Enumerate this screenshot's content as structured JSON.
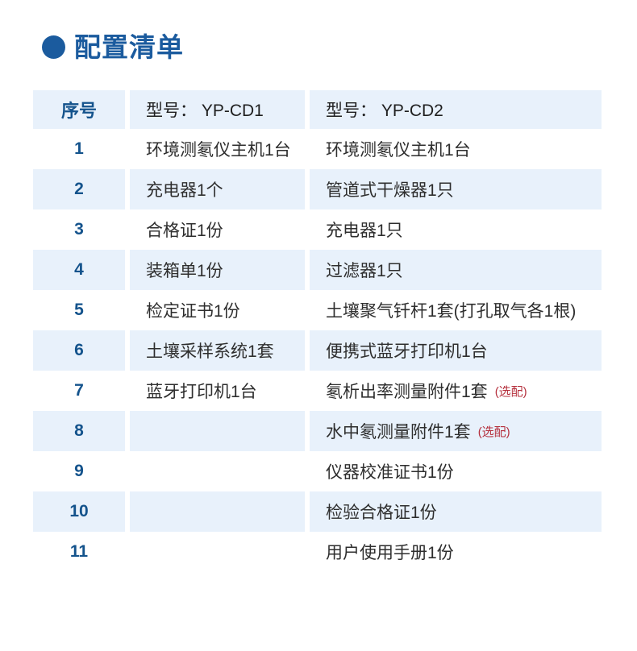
{
  "title": {
    "text": "配置清单"
  },
  "icons": {
    "bullet": "filled-circle"
  },
  "colors": {
    "accent_blue": "#1b5b9e",
    "number_blue": "#14538c",
    "row_light_blue": "#e8f1fb",
    "body_text": "#2e2e2e",
    "optional_red": "#b5303d"
  },
  "table": {
    "headers": [
      "序号",
      "型号： YP-CD1",
      "型号： YP-CD2"
    ],
    "rows": [
      {
        "no": "1",
        "cd1": "环境测氡仪主机1台",
        "cd2": "环境测氡仪主机1台",
        "note": ""
      },
      {
        "no": "2",
        "cd1": "充电器1个",
        "cd2": "管道式干燥器1只",
        "note": ""
      },
      {
        "no": "3",
        "cd1": "合格证1份",
        "cd2": "充电器1只",
        "note": ""
      },
      {
        "no": "4",
        "cd1": "装箱单1份",
        "cd2": "过滤器1只",
        "note": ""
      },
      {
        "no": "5",
        "cd1": "检定证书1份",
        "cd2": "土壤聚气钎杆1套(打孔取气各1根)",
        "note": ""
      },
      {
        "no": "6",
        "cd1": "土壤采样系统1套",
        "cd2": "便携式蓝牙打印机1台",
        "note": ""
      },
      {
        "no": "7",
        "cd1": "蓝牙打印机1台",
        "cd2": "氡析出率测量附件1套",
        "note": "(选配)"
      },
      {
        "no": "8",
        "cd1": "",
        "cd2": "水中氡测量附件1套",
        "note": "(选配)"
      },
      {
        "no": "9",
        "cd1": "",
        "cd2": "仪器校准证书1份",
        "note": ""
      },
      {
        "no": "10",
        "cd1": "",
        "cd2": "检验合格证1份",
        "note": ""
      },
      {
        "no": "11",
        "cd1": "",
        "cd2": "用户使用手册1份",
        "note": ""
      }
    ]
  }
}
